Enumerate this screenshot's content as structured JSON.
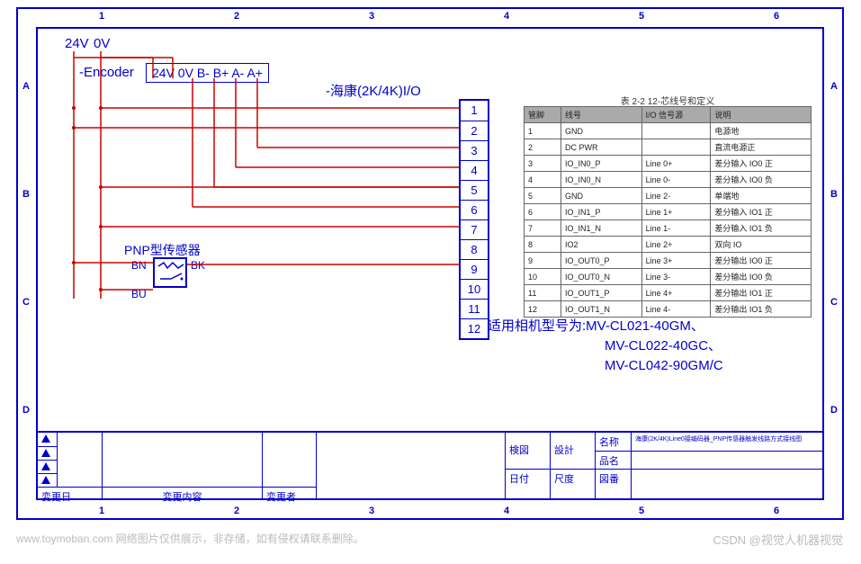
{
  "ruler": {
    "top": [
      "1",
      "2",
      "3",
      "4",
      "5",
      "6"
    ],
    "left": [
      "A",
      "B",
      "C",
      "D"
    ]
  },
  "power": {
    "v24": "24V",
    "v0": "0V"
  },
  "encoder": {
    "label": "-Encoder",
    "pins_text": "24V 0V B- B+ A- A+"
  },
  "io_block": {
    "title": "-海康(2K/4K)I/O",
    "pins": [
      "1",
      "2",
      "3",
      "4",
      "5",
      "6",
      "7",
      "8",
      "9",
      "10",
      "11",
      "12"
    ]
  },
  "sensor": {
    "title": "PNP型传感器",
    "bn": "BN",
    "bk": "BK",
    "bu": "BU"
  },
  "pin_table": {
    "caption": "表 2-2 12-芯线号和定义",
    "headers": [
      "管脚",
      "线号",
      "I/O 信号源",
      "说明"
    ],
    "rows": [
      [
        "1",
        "GND",
        "",
        "电源地"
      ],
      [
        "2",
        "DC PWR",
        "",
        "直流电源正"
      ],
      [
        "3",
        "IO_IN0_P",
        "Line 0+",
        "差分输入 IO0 正"
      ],
      [
        "4",
        "IO_IN0_N",
        "Line 0-",
        "差分输入 IO0 负"
      ],
      [
        "5",
        "GND",
        "Line 2-",
        "单端地"
      ],
      [
        "6",
        "IO_IN1_P",
        "Line 1+",
        "差分输入 IO1 正"
      ],
      [
        "7",
        "IO_IN1_N",
        "Line 1-",
        "差分输入 IO1 负"
      ],
      [
        "8",
        "IO2",
        "Line 2+",
        "双向 IO"
      ],
      [
        "9",
        "IO_OUT0_P",
        "Line 3+",
        "差分输出 IO0 正"
      ],
      [
        "10",
        "IO_OUT0_N",
        "Line 3-",
        "差分输出 IO0 负"
      ],
      [
        "11",
        "IO_OUT1_P",
        "Line 4+",
        "差分输出 IO1 正"
      ],
      [
        "12",
        "IO_OUT1_N",
        "Line 4-",
        "差分输出 IO1 负"
      ]
    ]
  },
  "suitability": {
    "prefix": "适用相机型号为:",
    "models": [
      "MV-CL021-40GM、",
      "MV-CL022-40GC、",
      "MV-CL042-90GM/C"
    ]
  },
  "title_block": {
    "kantei": "検図",
    "sekkei": "設計",
    "meisho": "名称",
    "hinmei": "品名",
    "hiduke": "日付",
    "shakudo": "尺度",
    "zuban": "図番",
    "henkou_date": "変更日",
    "henkou_content": "変更内容",
    "henkou_sha": "変更者",
    "name_val": "海康(2K/4K)Line0接编码器_PNP传感器触发线路方式接线图"
  },
  "footer": {
    "left": "www.toymoban.com  网络图片仅供展示，非存储，如有侵权请联系删除。",
    "right": "CSDN @视觉人机器视觉"
  },
  "colors": {
    "frame": "#0000cc",
    "wire": "#cc0000",
    "text_muted": "#bbbbbb"
  }
}
